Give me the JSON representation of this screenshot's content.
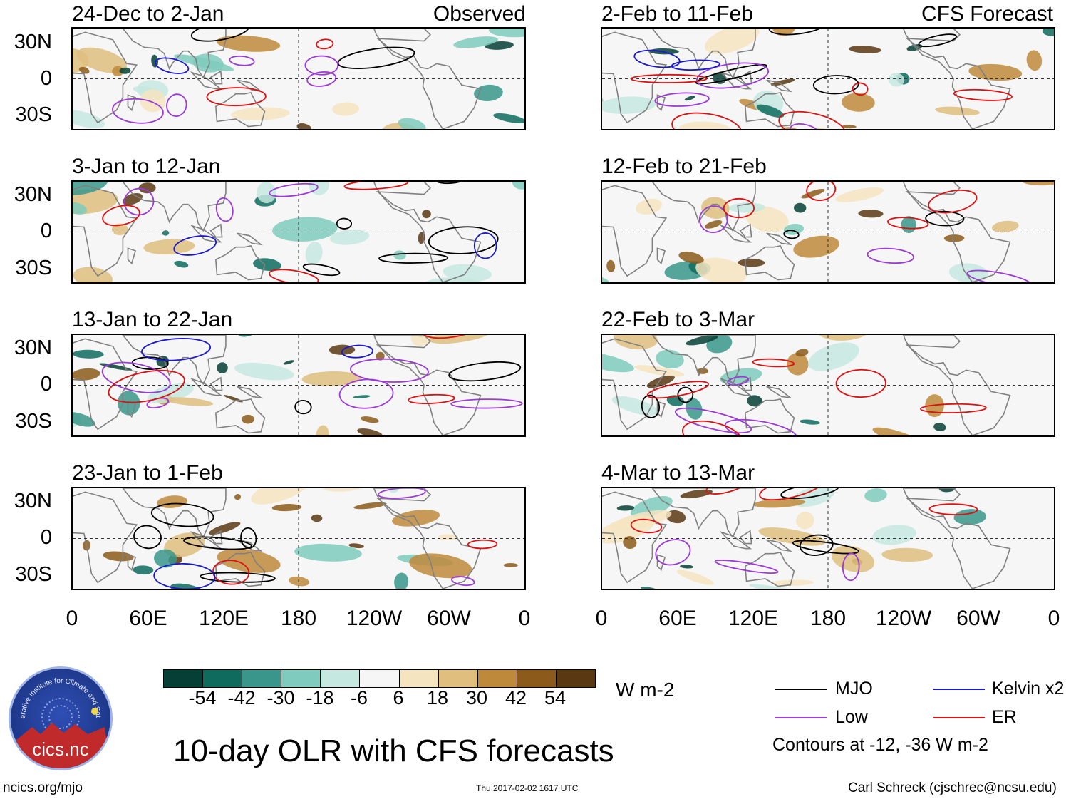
{
  "figure": {
    "main_title": "10-day OLR with CFS forecasts",
    "observed_label": "Observed",
    "forecast_label": "CFS Forecast",
    "units": "W m-2",
    "timestamp": "Thu 2017-02-02 1617 UTC",
    "website": "ncics.org/mjo",
    "author": "Carl Schreck (cjschrec@ncsu.edu)",
    "logo_text": "cics.nc",
    "logo_ring_text": "Cooperative Institute for Climate and Satellites"
  },
  "panels_left": [
    {
      "period": "24-Dec to 2-Jan"
    },
    {
      "period": "3-Jan to 12-Jan"
    },
    {
      "period": "13-Jan to 22-Jan"
    },
    {
      "period": "23-Jan to 1-Feb"
    }
  ],
  "panels_right": [
    {
      "period": "2-Feb to 11-Feb"
    },
    {
      "period": "12-Feb to 21-Feb"
    },
    {
      "period": "22-Feb to 3-Mar"
    },
    {
      "period": "4-Mar to 13-Mar"
    }
  ],
  "axes": {
    "lat_labels": [
      "30N",
      "0",
      "30S"
    ],
    "lon_labels": [
      "0",
      "60E",
      "120E",
      "180",
      "120W",
      "60W",
      "0"
    ]
  },
  "colorbar": {
    "labels": [
      "-54",
      "-42",
      "-30",
      "-18",
      "-6",
      "6",
      "18",
      "30",
      "42",
      "54"
    ],
    "colors": [
      "#063f36",
      "#0e6b5e",
      "#3a968a",
      "#7fcbbd",
      "#c5e8e0",
      "#f6f6f6",
      "#f4e4bf",
      "#dfbe7e",
      "#bf893c",
      "#8c5a1a",
      "#593812"
    ]
  },
  "legend": {
    "items": [
      {
        "label": "MJO",
        "color": "#000000"
      },
      {
        "label": "Kelvin x2",
        "color": "#1a1acc"
      },
      {
        "label": "Low",
        "color": "#9b3ad6"
      },
      {
        "label": "ER",
        "color": "#dd1111"
      }
    ],
    "note": "Contours at -12, -36 W m-2"
  },
  "colors": {
    "mjo": "#000000",
    "kelvin": "#1a1acc",
    "low": "#9b3ad6",
    "er": "#dd1111",
    "coast": "#808080"
  }
}
